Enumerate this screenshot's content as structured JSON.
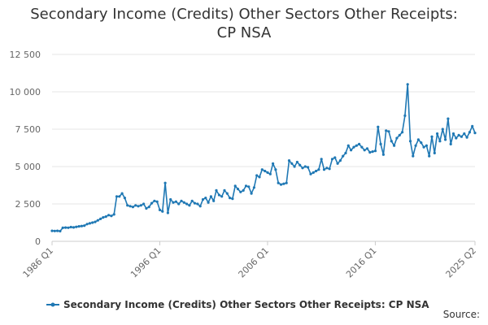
{
  "chart_title": {
    "line1": "Secondary Income (Credits) Other Sectors Other Receipts:",
    "line2": "CP NSA"
  },
  "source_label": "Source:",
  "colors": {
    "series": "#1f78b4",
    "grid": "#e6e6e6",
    "axis": "#cccccc",
    "text": "#333333",
    "tick": "#666666"
  },
  "chart_data": {
    "type": "line",
    "title": "Secondary Income (Credits) Other Sectors Other Receipts: CP NSA",
    "xlabel": "",
    "ylabel": "",
    "ylim": [
      0,
      12500
    ],
    "y_ticks": [
      0,
      2500,
      5000,
      7500,
      10000,
      12500
    ],
    "y_tick_labels": [
      "0",
      "2 500",
      "5 000",
      "7 500",
      "10 000",
      "12 500"
    ],
    "x_ticks": [
      "1986 Q1",
      "1996 Q1",
      "2006 Q1",
      "2016 Q1",
      "2025 Q2"
    ],
    "x_tick_values": [
      1986.0,
      1996.0,
      2006.0,
      2016.0,
      2025.25
    ],
    "xlim": [
      1986.0,
      2025.25
    ],
    "grid": true,
    "legend_position": "bottom",
    "series": [
      {
        "name": "Secondary Income (Credits) Other Sectors Other Receipts: CP NSA",
        "points": [
          [
            1986.0,
            700
          ],
          [
            1986.25,
            690
          ],
          [
            1986.5,
            700
          ],
          [
            1986.75,
            680
          ],
          [
            1987.0,
            900
          ],
          [
            1987.25,
            920
          ],
          [
            1987.5,
            910
          ],
          [
            1987.75,
            950
          ],
          [
            1988.0,
            930
          ],
          [
            1988.25,
            970
          ],
          [
            1988.5,
            1000
          ],
          [
            1988.75,
            1020
          ],
          [
            1989.0,
            1050
          ],
          [
            1989.25,
            1150
          ],
          [
            1989.5,
            1200
          ],
          [
            1989.75,
            1250
          ],
          [
            1990.0,
            1300
          ],
          [
            1990.25,
            1400
          ],
          [
            1990.5,
            1500
          ],
          [
            1990.75,
            1600
          ],
          [
            1991.0,
            1650
          ],
          [
            1991.25,
            1750
          ],
          [
            1991.5,
            1700
          ],
          [
            1991.75,
            1800
          ],
          [
            1992.0,
            3000
          ],
          [
            1992.25,
            3000
          ],
          [
            1992.5,
            3200
          ],
          [
            1992.75,
            2900
          ],
          [
            1993.0,
            2400
          ],
          [
            1993.25,
            2350
          ],
          [
            1993.5,
            2300
          ],
          [
            1993.75,
            2400
          ],
          [
            1994.0,
            2350
          ],
          [
            1994.25,
            2400
          ],
          [
            1994.5,
            2500
          ],
          [
            1994.75,
            2200
          ],
          [
            1995.0,
            2300
          ],
          [
            1995.25,
            2550
          ],
          [
            1995.5,
            2700
          ],
          [
            1995.75,
            2650
          ],
          [
            1996.0,
            2100
          ],
          [
            1996.25,
            2000
          ],
          [
            1996.5,
            3900
          ],
          [
            1996.75,
            1900
          ],
          [
            1997.0,
            2800
          ],
          [
            1997.25,
            2600
          ],
          [
            1997.5,
            2650
          ],
          [
            1997.75,
            2500
          ],
          [
            1998.0,
            2700
          ],
          [
            1998.25,
            2600
          ],
          [
            1998.5,
            2500
          ],
          [
            1998.75,
            2400
          ],
          [
            1999.0,
            2700
          ],
          [
            1999.25,
            2550
          ],
          [
            1999.5,
            2500
          ],
          [
            1999.75,
            2350
          ],
          [
            2000.0,
            2800
          ],
          [
            2000.25,
            2900
          ],
          [
            2000.5,
            2600
          ],
          [
            2000.75,
            3000
          ],
          [
            2001.0,
            2700
          ],
          [
            2001.25,
            3400
          ],
          [
            2001.5,
            3100
          ],
          [
            2001.75,
            3000
          ],
          [
            2002.0,
            3400
          ],
          [
            2002.25,
            3200
          ],
          [
            2002.5,
            2900
          ],
          [
            2002.75,
            2850
          ],
          [
            2003.0,
            3700
          ],
          [
            2003.25,
            3500
          ],
          [
            2003.5,
            3300
          ],
          [
            2003.75,
            3400
          ],
          [
            2004.0,
            3700
          ],
          [
            2004.25,
            3650
          ],
          [
            2004.5,
            3200
          ],
          [
            2004.75,
            3600
          ],
          [
            2005.0,
            4400
          ],
          [
            2005.25,
            4300
          ],
          [
            2005.5,
            4800
          ],
          [
            2005.75,
            4700
          ],
          [
            2006.0,
            4600
          ],
          [
            2006.25,
            4500
          ],
          [
            2006.5,
            5200
          ],
          [
            2006.75,
            4800
          ],
          [
            2007.0,
            3900
          ],
          [
            2007.25,
            3800
          ],
          [
            2007.5,
            3850
          ],
          [
            2007.75,
            3900
          ],
          [
            2008.0,
            5400
          ],
          [
            2008.25,
            5200
          ],
          [
            2008.5,
            5000
          ],
          [
            2008.75,
            5300
          ],
          [
            2009.0,
            5100
          ],
          [
            2009.25,
            4900
          ],
          [
            2009.5,
            5000
          ],
          [
            2009.75,
            4950
          ],
          [
            2010.0,
            4500
          ],
          [
            2010.25,
            4600
          ],
          [
            2010.5,
            4700
          ],
          [
            2010.75,
            4800
          ],
          [
            2011.0,
            5500
          ],
          [
            2011.25,
            4800
          ],
          [
            2011.5,
            4900
          ],
          [
            2011.75,
            4850
          ],
          [
            2012.0,
            5500
          ],
          [
            2012.25,
            5600
          ],
          [
            2012.5,
            5200
          ],
          [
            2012.75,
            5400
          ],
          [
            2013.0,
            5700
          ],
          [
            2013.25,
            5900
          ],
          [
            2013.5,
            6400
          ],
          [
            2013.75,
            6100
          ],
          [
            2014.0,
            6300
          ],
          [
            2014.25,
            6400
          ],
          [
            2014.5,
            6500
          ],
          [
            2014.75,
            6300
          ],
          [
            2015.0,
            6100
          ],
          [
            2015.25,
            6200
          ],
          [
            2015.5,
            5950
          ],
          [
            2015.75,
            6000
          ],
          [
            2016.0,
            6050
          ],
          [
            2016.25,
            7650
          ],
          [
            2016.5,
            6500
          ],
          [
            2016.75,
            5800
          ],
          [
            2017.0,
            7400
          ],
          [
            2017.25,
            7350
          ],
          [
            2017.5,
            6700
          ],
          [
            2017.75,
            6400
          ],
          [
            2018.0,
            6900
          ],
          [
            2018.25,
            7100
          ],
          [
            2018.5,
            7300
          ],
          [
            2018.75,
            8400
          ],
          [
            2019.0,
            10500
          ],
          [
            2019.25,
            6700
          ],
          [
            2019.5,
            5700
          ],
          [
            2019.75,
            6400
          ],
          [
            2020.0,
            6800
          ],
          [
            2020.25,
            6600
          ],
          [
            2020.5,
            6300
          ],
          [
            2020.75,
            6400
          ],
          [
            2021.0,
            5700
          ],
          [
            2021.25,
            7000
          ],
          [
            2021.5,
            5900
          ],
          [
            2021.75,
            7200
          ],
          [
            2022.0,
            6700
          ],
          [
            2022.25,
            7500
          ],
          [
            2022.5,
            6800
          ],
          [
            2022.75,
            8200
          ],
          [
            2023.0,
            6500
          ],
          [
            2023.25,
            7200
          ],
          [
            2023.5,
            6900
          ],
          [
            2023.75,
            7100
          ],
          [
            2024.0,
            7000
          ],
          [
            2024.25,
            7200
          ],
          [
            2024.5,
            6950
          ],
          [
            2024.75,
            7300
          ],
          [
            2025.0,
            7700
          ],
          [
            2025.25,
            7250
          ]
        ]
      }
    ]
  }
}
